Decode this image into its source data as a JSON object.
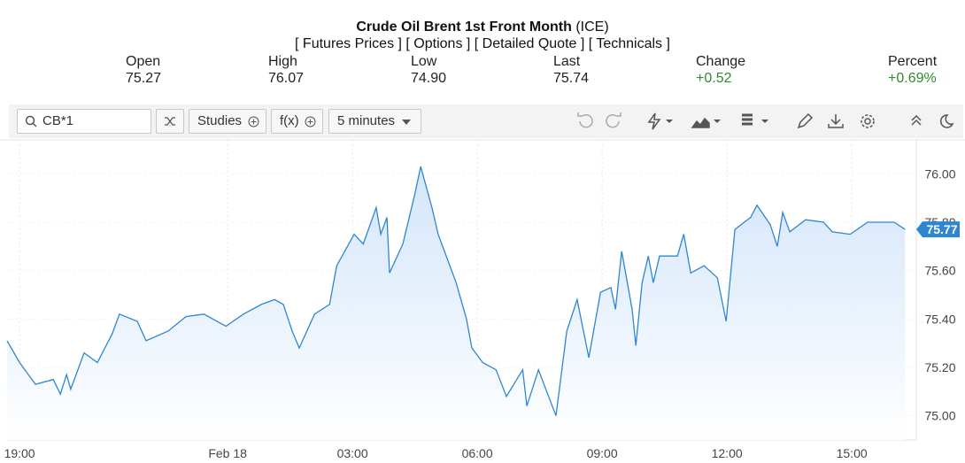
{
  "header": {
    "title": "Crude Oil Brent 1st Front Month",
    "exchange": "(ICE)",
    "links": [
      "[ Futures Prices ]",
      "[ Options ]",
      "[ Detailed Quote ]",
      "[ Technicals ]"
    ],
    "stats": [
      {
        "label": "Open",
        "value": "75.27"
      },
      {
        "label": "High",
        "value": "76.07"
      },
      {
        "label": "Low",
        "value": "74.90"
      },
      {
        "label": "Last",
        "value": "75.74"
      },
      {
        "label": "Change",
        "value": "+0.52"
      },
      {
        "label": "Percent",
        "value": "+0.69%"
      }
    ]
  },
  "toolbar": {
    "symbol": "CB*1",
    "studies": "Studies",
    "function": "f(x)",
    "interval": "5 minutes"
  },
  "chart_data": {
    "type": "line",
    "color": "#2f86d0",
    "fill": "#cfe3fa",
    "grid": true,
    "current_value": 75.77,
    "x": [
      -0.3,
      0.0,
      0.38,
      0.81,
      0.98,
      1.13,
      1.23,
      1.55,
      1.87,
      2.23,
      2.4,
      2.83,
      3.04,
      3.57,
      4.0,
      4.43,
      4.96,
      5.38,
      5.81,
      6.13,
      6.34,
      6.55,
      6.72,
      7.09,
      7.45,
      7.62,
      8.04,
      8.26,
      8.57,
      8.68,
      8.83,
      8.89,
      9.21,
      9.49,
      9.64,
      9.91,
      10.06,
      10.49,
      10.74,
      10.87,
      11.13,
      11.45,
      11.7,
      12.09,
      12.19,
      12.47,
      12.89,
      13.15,
      13.4,
      13.68,
      13.96,
      14.21,
      14.32,
      14.47,
      14.72,
      14.81,
      14.96,
      15.11,
      15.23,
      15.38,
      15.81,
      15.96,
      16.13,
      16.45,
      16.77,
      16.98,
      17.19,
      17.57,
      17.72,
      18.04,
      18.21,
      18.34,
      18.51,
      18.89,
      19.32,
      19.53,
      19.96,
      20.38,
      21.02,
      21.28
    ],
    "values": [
      75.31,
      75.22,
      75.13,
      75.15,
      75.09,
      75.17,
      75.11,
      75.26,
      75.22,
      75.34,
      75.42,
      75.39,
      75.31,
      75.35,
      75.41,
      75.42,
      75.37,
      75.42,
      75.46,
      75.48,
      75.46,
      75.35,
      75.28,
      75.42,
      75.46,
      75.62,
      75.75,
      75.71,
      75.86,
      75.75,
      75.82,
      75.59,
      75.71,
      75.91,
      76.03,
      75.86,
      75.75,
      75.55,
      75.4,
      75.28,
      75.22,
      75.19,
      75.08,
      75.19,
      75.04,
      75.19,
      75.0,
      75.35,
      75.48,
      75.24,
      75.51,
      75.53,
      75.44,
      75.68,
      75.44,
      75.29,
      75.55,
      75.66,
      75.55,
      75.66,
      75.66,
      75.75,
      75.59,
      75.62,
      75.57,
      75.39,
      75.77,
      75.82,
      75.87,
      75.79,
      75.7,
      75.84,
      75.76,
      75.81,
      75.8,
      75.76,
      75.75,
      75.8,
      75.8,
      75.77
    ],
    "xlim": [
      -0.3,
      21.55
    ],
    "xticks": [
      {
        "value": 0,
        "label": "19:00"
      },
      {
        "value": 5,
        "label": "Feb 18"
      },
      {
        "value": 8,
        "label": "03:00"
      },
      {
        "value": 11,
        "label": "06:00"
      },
      {
        "value": 14,
        "label": "09:00"
      },
      {
        "value": 17,
        "label": "12:00"
      },
      {
        "value": 20,
        "label": "15:00"
      }
    ],
    "ylim": [
      74.9,
      76.14
    ],
    "yticks": [
      {
        "value": 75,
        "label": "75.00"
      },
      {
        "value": 75.2,
        "label": "75.20"
      },
      {
        "value": 75.4,
        "label": "75.40"
      },
      {
        "value": 75.6,
        "label": "75.60"
      },
      {
        "value": 75.8,
        "label": "75.80"
      },
      {
        "value": 76,
        "label": "76.00"
      }
    ]
  }
}
